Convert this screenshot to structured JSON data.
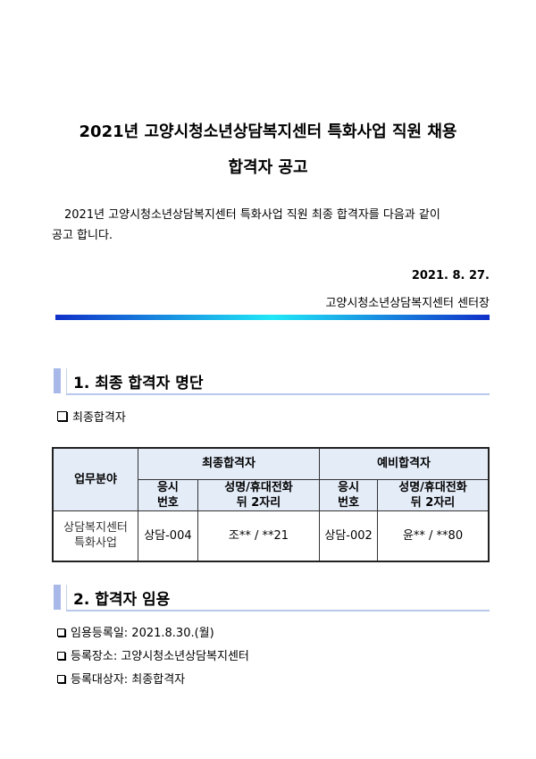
{
  "title": {
    "line1": "2021년 고양시청소년상담복지센터 특화사업 직원 채용",
    "line2": "합격자 공고"
  },
  "intro": {
    "line1": "2021년 고양시청소년상담복지센터 특화사업 직원 최종 합격자를 다음과 같이",
    "line2": "공고 합니다."
  },
  "date": "2021. 8. 27.",
  "issuer": "고양시청소년상담복지센터 센터장",
  "section1": {
    "heading": "1. 최종 합격자 명단",
    "bullet": "최종합격자"
  },
  "table": {
    "col_field": "업무분야",
    "group_final": "최종합격자",
    "group_reserve": "예비합격자",
    "col_no_1": "응시",
    "col_no_2": "번호",
    "col_name_1": "성명/휴대전화",
    "col_name_2": "뒤 2자리",
    "row": {
      "field_1": "상담복지센터",
      "field_2": "특화사업",
      "final_no": "상담-004",
      "final_name": "조** / **21",
      "reserve_no": "상담-002",
      "reserve_name": "윤** / **80"
    }
  },
  "section2": {
    "heading": "2. 합격자 임용",
    "bullets": [
      "임용등록일: 2021.8.30.(월)",
      "등록장소: 고양시청소년상담복지센터",
      "등록대상자: 최종합격자"
    ]
  },
  "colors": {
    "gradient_bar": [
      "#1030c8",
      "#20e8f8"
    ],
    "header_fill": "#e4ecf8",
    "section_accent": "#a8b8e8"
  }
}
